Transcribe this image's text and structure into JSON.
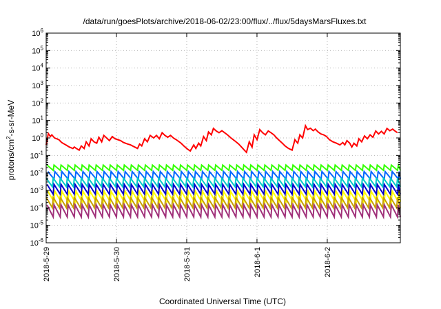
{
  "chart_data": {
    "type": "line",
    "title": "/data/run/goesPlots/archive/2018-06-02/23:00/flux/../flux/5daysMarsFluxes.txt",
    "xlabel": "Coordinated Universal Time (UTC)",
    "ylabel_base": "protons/cm",
    "ylabel_sup": "2",
    "ylabel_rest": "-s-sr-MeV",
    "y_scale": "log",
    "ylim_exp": [
      -6,
      6
    ],
    "y_tick_exponents": [
      -6,
      -5,
      -4,
      -3,
      -2,
      -1,
      0,
      1,
      2,
      3,
      4,
      5,
      6
    ],
    "x_range_days": [
      0,
      5.04
    ],
    "x_ticks": [
      {
        "label": "2018-5-29",
        "day": 0
      },
      {
        "label": "2018-5-30",
        "day": 1
      },
      {
        "label": "2018-5-31",
        "day": 2
      },
      {
        "label": "2018-6-1",
        "day": 3
      },
      {
        "label": "2018-6-2",
        "day": 4
      }
    ],
    "grid": true,
    "legend": "none",
    "colors": {
      "red": "#ff0000",
      "green": "#33ff00",
      "blue_light": "#0066ff",
      "cyan": "#00c8c8",
      "blue_dark": "#0000cc",
      "yellow": "#ffff00",
      "tan": "#c8a000",
      "magenta": "#a0307a",
      "grid": "#b4b4b4",
      "axis": "#000000"
    },
    "series": [
      {
        "color": "red",
        "points": [
          [
            0.0,
            0.4
          ],
          [
            0.03,
            1.8
          ],
          [
            0.06,
            1.2
          ],
          [
            0.08,
            1.5
          ],
          [
            0.12,
            1.0
          ],
          [
            0.18,
            0.8
          ],
          [
            0.22,
            0.55
          ],
          [
            0.28,
            0.4
          ],
          [
            0.33,
            0.3
          ],
          [
            0.38,
            0.25
          ],
          [
            0.4,
            0.3
          ],
          [
            0.43,
            0.25
          ],
          [
            0.47,
            0.2
          ],
          [
            0.5,
            0.35
          ],
          [
            0.54,
            0.25
          ],
          [
            0.57,
            0.6
          ],
          [
            0.61,
            0.35
          ],
          [
            0.64,
            0.9
          ],
          [
            0.68,
            0.6
          ],
          [
            0.72,
            0.5
          ],
          [
            0.75,
            1.1
          ],
          [
            0.79,
            0.6
          ],
          [
            0.82,
            1.4
          ],
          [
            0.86,
            1.0
          ],
          [
            0.9,
            0.7
          ],
          [
            0.94,
            1.2
          ],
          [
            0.98,
            0.9
          ],
          [
            1.02,
            0.8
          ],
          [
            1.06,
            0.7
          ],
          [
            1.1,
            0.55
          ],
          [
            1.16,
            0.45
          ],
          [
            1.2,
            0.4
          ],
          [
            1.26,
            0.3
          ],
          [
            1.3,
            0.25
          ],
          [
            1.33,
            0.45
          ],
          [
            1.36,
            0.35
          ],
          [
            1.4,
            0.9
          ],
          [
            1.44,
            0.6
          ],
          [
            1.48,
            1.4
          ],
          [
            1.53,
            1.0
          ],
          [
            1.57,
            1.4
          ],
          [
            1.61,
            0.9
          ],
          [
            1.65,
            2.0
          ],
          [
            1.69,
            1.4
          ],
          [
            1.73,
            1.1
          ],
          [
            1.77,
            1.4
          ],
          [
            1.81,
            1.0
          ],
          [
            1.86,
            0.75
          ],
          [
            1.92,
            0.5
          ],
          [
            1.96,
            0.35
          ],
          [
            2.0,
            0.25
          ],
          [
            2.05,
            0.18
          ],
          [
            2.1,
            0.4
          ],
          [
            2.13,
            0.25
          ],
          [
            2.17,
            0.5
          ],
          [
            2.2,
            0.35
          ],
          [
            2.24,
            1.2
          ],
          [
            2.28,
            0.7
          ],
          [
            2.31,
            2.2
          ],
          [
            2.35,
            1.5
          ],
          [
            2.38,
            3.5
          ],
          [
            2.42,
            2.5
          ],
          [
            2.46,
            2.0
          ],
          [
            2.5,
            2.6
          ],
          [
            2.54,
            2.0
          ],
          [
            2.58,
            1.5
          ],
          [
            2.63,
            1.0
          ],
          [
            2.68,
            0.7
          ],
          [
            2.74,
            0.45
          ],
          [
            2.78,
            0.3
          ],
          [
            2.82,
            0.2
          ],
          [
            2.85,
            0.15
          ],
          [
            2.89,
            0.6
          ],
          [
            2.93,
            0.3
          ],
          [
            2.96,
            1.5
          ],
          [
            3.0,
            0.8
          ],
          [
            3.04,
            3.0
          ],
          [
            3.08,
            2.0
          ],
          [
            3.12,
            1.5
          ],
          [
            3.16,
            2.5
          ],
          [
            3.2,
            2.0
          ],
          [
            3.24,
            1.5
          ],
          [
            3.28,
            1.0
          ],
          [
            3.32,
            0.7
          ],
          [
            3.36,
            0.5
          ],
          [
            3.4,
            0.35
          ],
          [
            3.45,
            0.25
          ],
          [
            3.5,
            0.2
          ],
          [
            3.54,
            0.8
          ],
          [
            3.58,
            0.5
          ],
          [
            3.61,
            1.5
          ],
          [
            3.65,
            1.0
          ],
          [
            3.69,
            5.0
          ],
          [
            3.72,
            3.0
          ],
          [
            3.76,
            3.6
          ],
          [
            3.8,
            2.6
          ],
          [
            3.83,
            3.2
          ],
          [
            3.87,
            2.2
          ],
          [
            3.91,
            1.7
          ],
          [
            3.95,
            1.5
          ],
          [
            3.99,
            1.2
          ],
          [
            4.03,
            0.8
          ],
          [
            4.08,
            0.6
          ],
          [
            4.13,
            0.5
          ],
          [
            4.18,
            0.4
          ],
          [
            4.22,
            0.55
          ],
          [
            4.25,
            0.4
          ],
          [
            4.28,
            0.7
          ],
          [
            4.32,
            0.5
          ],
          [
            4.35,
            0.3
          ],
          [
            4.38,
            0.5
          ],
          [
            4.42,
            0.35
          ],
          [
            4.45,
            0.9
          ],
          [
            4.49,
            0.6
          ],
          [
            4.53,
            1.3
          ],
          [
            4.57,
            0.9
          ],
          [
            4.61,
            1.5
          ],
          [
            4.65,
            1.1
          ],
          [
            4.69,
            2.5
          ],
          [
            4.73,
            1.7
          ],
          [
            4.77,
            2.4
          ],
          [
            4.81,
            1.7
          ],
          [
            4.85,
            3.5
          ],
          [
            4.89,
            2.6
          ],
          [
            4.93,
            3.2
          ],
          [
            4.97,
            2.4
          ],
          [
            5.0,
            2.0
          ]
        ]
      },
      {
        "color": "green",
        "sawtooth": {
          "peak": 0.028,
          "trough": 0.014,
          "period": 0.1
        }
      },
      {
        "color": "blue_light",
        "sawtooth": {
          "peak": 0.012,
          "trough": 0.0045,
          "period": 0.1
        }
      },
      {
        "color": "cyan",
        "sawtooth": {
          "peak": 0.005,
          "trough": 0.0016,
          "period": 0.1
        }
      },
      {
        "color": "blue_dark",
        "sawtooth": {
          "peak": 0.0022,
          "trough": 0.0006,
          "period": 0.1
        }
      },
      {
        "color": "yellow",
        "sawtooth": {
          "peak": 0.0009,
          "trough": 0.00022,
          "period": 0.1
        }
      },
      {
        "color": "tan",
        "sawtooth": {
          "peak": 0.0004,
          "trough": 0.0001,
          "period": 0.1
        }
      },
      {
        "color": "magenta",
        "sawtooth": {
          "peak": 0.00015,
          "trough": 3e-05,
          "period": 0.1
        }
      }
    ]
  }
}
